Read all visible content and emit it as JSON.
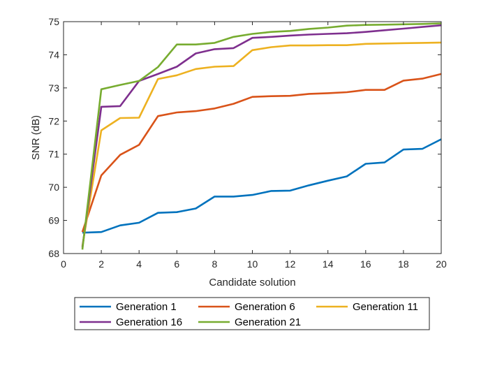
{
  "chart_data": {
    "type": "line",
    "xlabel": "Candidate solution",
    "ylabel": "SNR (dB)",
    "xlim": [
      0,
      20
    ],
    "ylim": [
      68,
      75
    ],
    "xticks": [
      0,
      2,
      4,
      6,
      8,
      10,
      12,
      14,
      16,
      18,
      20
    ],
    "yticks": [
      68,
      69,
      70,
      71,
      72,
      73,
      74,
      75
    ],
    "grid": false,
    "legend_position": "bottom",
    "x": [
      1,
      2,
      3,
      4,
      5,
      6,
      7,
      8,
      9,
      10,
      11,
      12,
      13,
      14,
      15,
      16,
      17,
      18,
      19,
      20
    ],
    "series": [
      {
        "name": "Generation 1",
        "color": "#0072BD",
        "values": [
          68.63,
          68.65,
          68.85,
          68.93,
          69.23,
          69.25,
          69.36,
          69.72,
          69.72,
          69.77,
          69.89,
          69.9,
          70.06,
          70.2,
          70.33,
          70.71,
          70.75,
          71.14,
          71.16,
          71.45
        ]
      },
      {
        "name": "Generation 6",
        "color": "#D95319",
        "values": [
          68.65,
          70.36,
          70.98,
          71.28,
          72.15,
          72.26,
          72.3,
          72.38,
          72.52,
          72.73,
          72.75,
          72.76,
          72.82,
          72.84,
          72.87,
          72.94,
          72.94,
          73.22,
          73.28,
          73.42
        ]
      },
      {
        "name": "Generation 11",
        "color": "#EDB120",
        "values": [
          68.22,
          71.72,
          72.09,
          72.1,
          73.27,
          73.38,
          73.57,
          73.64,
          73.66,
          74.14,
          74.23,
          74.28,
          74.28,
          74.29,
          74.29,
          74.33,
          74.34,
          74.35,
          74.36,
          74.37
        ]
      },
      {
        "name": "Generation 16",
        "color": "#7E2F8E",
        "values": [
          68.18,
          72.43,
          72.45,
          73.21,
          73.42,
          73.64,
          74.04,
          74.17,
          74.2,
          74.51,
          74.54,
          74.58,
          74.61,
          74.63,
          74.65,
          74.69,
          74.74,
          74.79,
          74.84,
          74.89
        ]
      },
      {
        "name": "Generation 21",
        "color": "#77AC30",
        "values": [
          68.12,
          72.96,
          73.09,
          73.21,
          73.63,
          74.31,
          74.31,
          74.36,
          74.54,
          74.63,
          74.69,
          74.72,
          74.78,
          74.82,
          74.88,
          74.9,
          74.91,
          74.92,
          74.93,
          74.95
        ]
      }
    ]
  }
}
